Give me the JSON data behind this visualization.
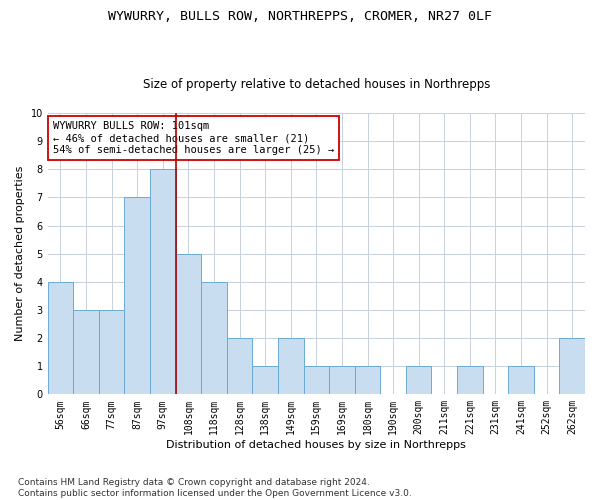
{
  "title1": "WYWURRY, BULLS ROW, NORTHREPPS, CROMER, NR27 0LF",
  "title2": "Size of property relative to detached houses in Northrepps",
  "xlabel": "Distribution of detached houses by size in Northrepps",
  "ylabel": "Number of detached properties",
  "bin_labels": [
    "56sqm",
    "66sqm",
    "77sqm",
    "87sqm",
    "97sqm",
    "108sqm",
    "118sqm",
    "128sqm",
    "138sqm",
    "149sqm",
    "159sqm",
    "169sqm",
    "180sqm",
    "190sqm",
    "200sqm",
    "211sqm",
    "221sqm",
    "231sqm",
    "241sqm",
    "252sqm",
    "262sqm"
  ],
  "values": [
    4,
    3,
    3,
    7,
    8,
    5,
    4,
    2,
    1,
    2,
    1,
    1,
    1,
    0,
    1,
    0,
    1,
    0,
    1,
    0,
    2
  ],
  "bar_color": "#c9ddf0",
  "bar_edge_color": "#6aaad4",
  "grid_color": "#c8d0dc",
  "vline_x": 4.5,
  "vline_color": "#aa0000",
  "annotation_text": "WYWURRY BULLS ROW: 101sqm\n← 46% of detached houses are smaller (21)\n54% of semi-detached houses are larger (25) →",
  "annotation_box_color": "white",
  "annotation_box_edge": "#cc0000",
  "ylim": [
    0,
    10
  ],
  "yticks": [
    0,
    1,
    2,
    3,
    4,
    5,
    6,
    7,
    8,
    9,
    10
  ],
  "footnote": "Contains HM Land Registry data © Crown copyright and database right 2024.\nContains public sector information licensed under the Open Government Licence v3.0.",
  "title1_fontsize": 9.5,
  "title2_fontsize": 8.5,
  "xlabel_fontsize": 8,
  "ylabel_fontsize": 8,
  "tick_fontsize": 7,
  "annot_fontsize": 7.5,
  "footnote_fontsize": 6.5
}
